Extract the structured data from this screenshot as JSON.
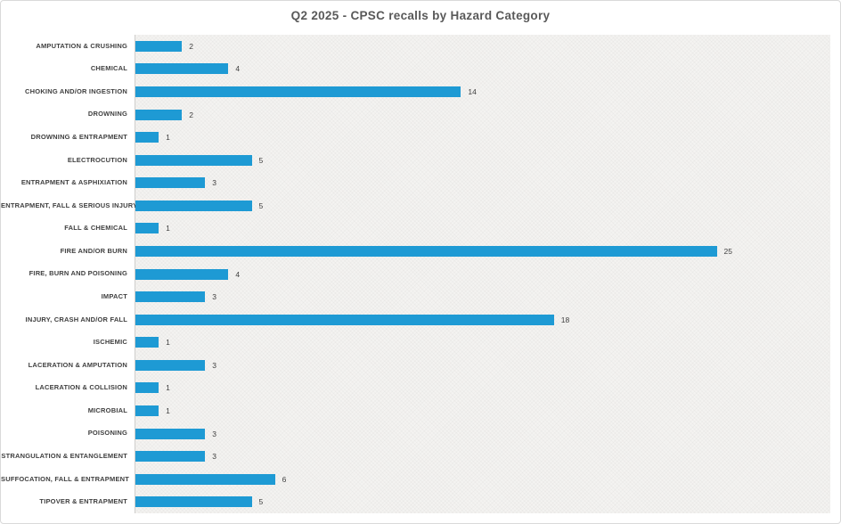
{
  "chart": {
    "title": "Q2 2025 - CPSC recalls by Hazard Category"
  },
  "chart_data": {
    "type": "bar",
    "orientation": "horizontal",
    "title": "Q2 2025 - CPSC recalls by Hazard Category",
    "categories": [
      "AMPUTATION & CRUSHING",
      "CHEMICAL",
      "CHOKING AND/OR INGESTION",
      "DROWNING",
      "DROWNING & ENTRAPMENT",
      "ELECTROCUTION",
      "ENTRAPMENT & ASPHIXIATION",
      "ENTRAPMENT, FALL & SERIOUS INJURY",
      "FALL & CHEMICAL",
      "FIRE AND/OR BURN",
      "FIRE, BURN AND POISONING",
      "IMPACT",
      "INJURY, CRASH AND/OR FALL",
      "ISCHEMIC",
      "LACERATION & AMPUTATION",
      "LACERATION & COLLISION",
      "MICROBIAL",
      "POISONING",
      "STRANGULATION & ENTANGLEMENT",
      "SUFFOCATION, FALL & ENTRAPMENT",
      "TIPOVER & ENTRAPMENT"
    ],
    "values": [
      2,
      4,
      14,
      2,
      1,
      5,
      3,
      5,
      1,
      25,
      4,
      3,
      18,
      1,
      3,
      1,
      1,
      3,
      3,
      6,
      5
    ],
    "xlabel": "",
    "ylabel": "",
    "xlim": [
      0,
      30
    ],
    "grid": false,
    "legend": "none",
    "value_labels": true
  },
  "colors": {
    "bar": "#1e9ad4",
    "title_text": "#595959",
    "label_text": "#404040",
    "plot_background": "#f4f3f1",
    "chart_border": "#d9d9d9"
  }
}
